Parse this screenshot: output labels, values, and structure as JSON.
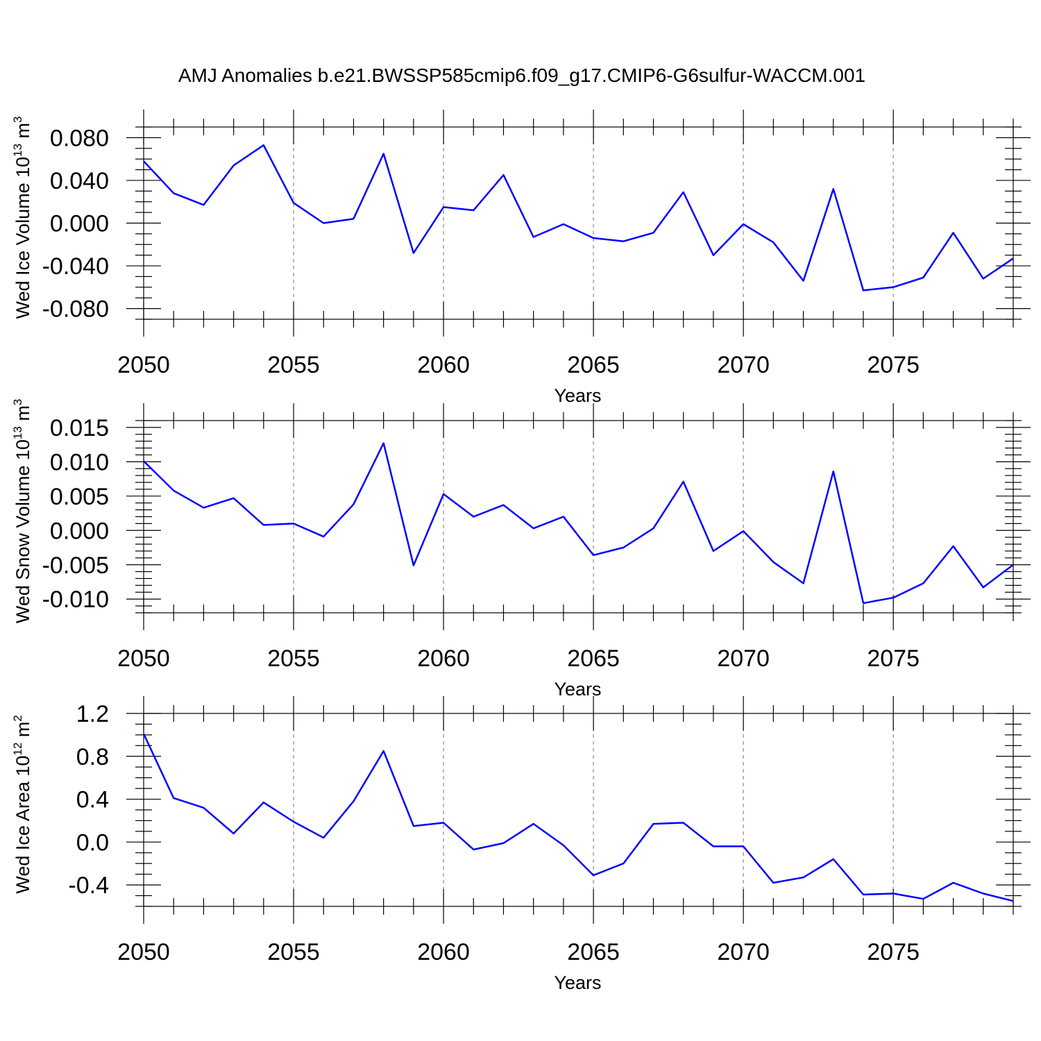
{
  "title": "AMJ Anomalies b.e21.BWSSP585cmip6.f09_g17.CMIP6-G6sulfur-WACCM.001",
  "chart_data": [
    {
      "type": "line",
      "id": "ice-volume",
      "ylabel": {
        "text": "Wed Ice Volume 10",
        "sup": "13",
        "unit": " m",
        "unit_sup": "3"
      },
      "xlabel": "Years",
      "xlim": [
        2050,
        2079
      ],
      "ylim": [
        -0.09,
        0.09
      ],
      "xticks": [
        2050,
        2055,
        2060,
        2065,
        2070,
        2075
      ],
      "xtick_labels": [
        "2050",
        "2055",
        "2060",
        "2065",
        "2070",
        "2075"
      ],
      "yticks": [
        0.08,
        0.04,
        0.0,
        -0.04,
        -0.08
      ],
      "ytick_labels": [
        "0.080",
        "0.040",
        "0.000",
        "-0.040",
        "-0.080"
      ],
      "yminor_step": 0.01,
      "grid": "vertical dashed at major x ticks",
      "color": "#0000ff",
      "x": [
        2050,
        2051,
        2052,
        2053,
        2054,
        2055,
        2056,
        2057,
        2058,
        2059,
        2060,
        2061,
        2062,
        2063,
        2064,
        2065,
        2066,
        2067,
        2068,
        2069,
        2070,
        2071,
        2072,
        2073,
        2074,
        2075,
        2076,
        2077,
        2078,
        2079
      ],
      "values": [
        0.058,
        0.028,
        0.017,
        0.054,
        0.073,
        0.019,
        0.0,
        0.004,
        0.065,
        -0.028,
        0.015,
        0.012,
        0.045,
        -0.013,
        -0.001,
        -0.014,
        -0.017,
        -0.009,
        0.029,
        -0.03,
        -0.001,
        -0.018,
        -0.054,
        0.032,
        -0.063,
        -0.06,
        -0.051,
        -0.009,
        -0.052,
        -0.033
      ]
    },
    {
      "type": "line",
      "id": "snow-volume",
      "ylabel": {
        "text": "Wed Snow Volume 10",
        "sup": "13",
        "unit": " m",
        "unit_sup": "3"
      },
      "xlabel": "Years",
      "xlim": [
        2050,
        2079
      ],
      "ylim": [
        -0.012,
        0.016
      ],
      "xticks": [
        2050,
        2055,
        2060,
        2065,
        2070,
        2075
      ],
      "xtick_labels": [
        "2050",
        "2055",
        "2060",
        "2065",
        "2070",
        "2075"
      ],
      "yticks": [
        0.015,
        0.01,
        0.005,
        0.0,
        -0.005,
        -0.01
      ],
      "ytick_labels": [
        "0.015",
        "0.010",
        "0.005",
        "0.000",
        "-0.005",
        "-0.010"
      ],
      "yminor_step": 0.001,
      "grid": "vertical dashed at major x ticks",
      "color": "#0000ff",
      "x": [
        2050,
        2051,
        2052,
        2053,
        2054,
        2055,
        2056,
        2057,
        2058,
        2059,
        2060,
        2061,
        2062,
        2063,
        2064,
        2065,
        2066,
        2067,
        2068,
        2069,
        2070,
        2071,
        2072,
        2073,
        2074,
        2075,
        2076,
        2077,
        2078,
        2079
      ],
      "values": [
        0.0101,
        0.0058,
        0.0033,
        0.0047,
        0.0008,
        0.001,
        -0.0009,
        0.0038,
        0.0127,
        -0.0051,
        0.0053,
        0.002,
        0.0037,
        0.0003,
        0.002,
        -0.0036,
        -0.0025,
        0.0003,
        0.0071,
        -0.003,
        -0.0001,
        -0.0046,
        -0.0077,
        0.0086,
        -0.0106,
        -0.0098,
        -0.0077,
        -0.0023,
        -0.0083,
        -0.005
      ]
    },
    {
      "type": "line",
      "id": "ice-area",
      "ylabel": {
        "text": "Wed Ice Area 10",
        "sup": "12",
        "unit": " m",
        "unit_sup": "2"
      },
      "xlabel": "Years",
      "xlim": [
        2050,
        2079
      ],
      "ylim": [
        -0.6,
        1.2
      ],
      "xticks": [
        2050,
        2055,
        2060,
        2065,
        2070,
        2075
      ],
      "xtick_labels": [
        "2050",
        "2055",
        "2060",
        "2065",
        "2070",
        "2075"
      ],
      "yticks": [
        1.2,
        0.8,
        0.4,
        0.0,
        -0.4
      ],
      "ytick_labels": [
        "1.2",
        "0.8",
        "0.4",
        "0.0",
        "-0.4"
      ],
      "yminor_step": 0.1,
      "grid": "vertical dashed at major x ticks",
      "color": "#0000ff",
      "x": [
        2050,
        2051,
        2052,
        2053,
        2054,
        2055,
        2056,
        2057,
        2058,
        2059,
        2060,
        2061,
        2062,
        2063,
        2064,
        2065,
        2066,
        2067,
        2068,
        2069,
        2070,
        2071,
        2072,
        2073,
        2074,
        2075,
        2076,
        2077,
        2078,
        2079
      ],
      "values": [
        1.01,
        0.41,
        0.32,
        0.08,
        0.37,
        0.19,
        0.04,
        0.38,
        0.85,
        0.15,
        0.18,
        -0.07,
        -0.01,
        0.17,
        -0.03,
        -0.31,
        -0.2,
        0.17,
        0.18,
        -0.04,
        -0.04,
        -0.38,
        -0.33,
        -0.16,
        -0.49,
        -0.48,
        -0.53,
        -0.38,
        -0.48,
        -0.55
      ]
    }
  ]
}
